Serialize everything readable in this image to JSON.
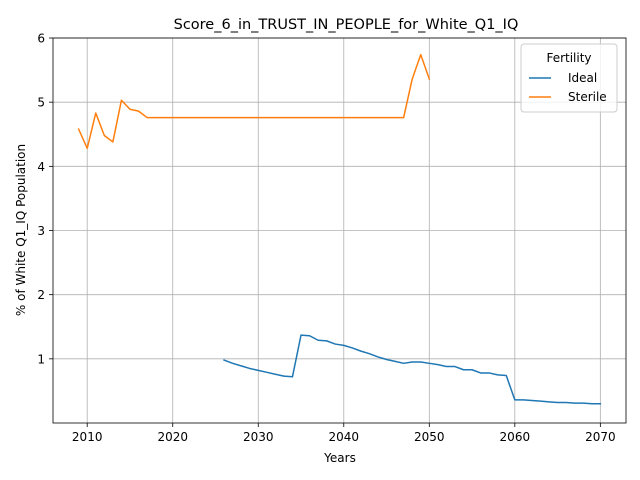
{
  "chart_data": {
    "type": "line",
    "title": "Score_6_in_TRUST_IN_PEOPLE_for_White_Q1_IQ",
    "xlabel": "Years",
    "ylabel": "% of White Q1_IQ Population",
    "xlim": [
      2006,
      2073
    ],
    "ylim": [
      0,
      6
    ],
    "xticks": [
      2010,
      2020,
      2030,
      2040,
      2050,
      2060,
      2070
    ],
    "yticks": [
      1,
      2,
      3,
      4,
      5,
      6
    ],
    "grid": true,
    "legend": {
      "title": "Fertility",
      "position": "top-right"
    },
    "series": [
      {
        "name": "Ideal",
        "color": "#1f77b4",
        "x": [
          2026,
          2027,
          2028,
          2029,
          2030,
          2031,
          2032,
          2033,
          2034,
          2035,
          2036,
          2037,
          2038,
          2039,
          2040,
          2041,
          2042,
          2043,
          2044,
          2045,
          2046,
          2047,
          2048,
          2049,
          2050,
          2051,
          2052,
          2053,
          2054,
          2055,
          2056,
          2057,
          2058,
          2059,
          2060,
          2061,
          2062,
          2063,
          2064,
          2065,
          2066,
          2067,
          2068,
          2069,
          2070
        ],
        "y": [
          0.98,
          0.93,
          0.89,
          0.85,
          0.82,
          0.79,
          0.76,
          0.73,
          0.72,
          1.37,
          1.36,
          1.29,
          1.28,
          1.23,
          1.21,
          1.17,
          1.12,
          1.08,
          1.03,
          0.99,
          0.96,
          0.93,
          0.95,
          0.95,
          0.93,
          0.91,
          0.88,
          0.88,
          0.83,
          0.83,
          0.78,
          0.78,
          0.75,
          0.74,
          0.36,
          0.36,
          0.35,
          0.34,
          0.33,
          0.32,
          0.32,
          0.31,
          0.31,
          0.3,
          0.3
        ]
      },
      {
        "name": "Sterile",
        "color": "#ff7f0e",
        "x": [
          2009,
          2010,
          2011,
          2012,
          2013,
          2014,
          2015,
          2016,
          2017,
          2018,
          2019,
          2020,
          2021,
          2022,
          2023,
          2024,
          2025,
          2026,
          2027,
          2028,
          2029,
          2030,
          2031,
          2032,
          2033,
          2034,
          2035,
          2036,
          2037,
          2038,
          2039,
          2040,
          2041,
          2042,
          2043,
          2044,
          2045,
          2046,
          2047,
          2048,
          2049,
          2050
        ],
        "y": [
          4.58,
          4.28,
          4.83,
          4.48,
          4.38,
          5.03,
          4.89,
          4.86,
          4.76,
          4.76,
          4.76,
          4.76,
          4.76,
          4.76,
          4.76,
          4.76,
          4.76,
          4.76,
          4.76,
          4.76,
          4.76,
          4.76,
          4.76,
          4.76,
          4.76,
          4.76,
          4.76,
          4.76,
          4.76,
          4.76,
          4.76,
          4.76,
          4.76,
          4.76,
          4.76,
          4.76,
          4.76,
          4.76,
          4.76,
          5.36,
          5.74,
          5.36
        ]
      }
    ]
  }
}
